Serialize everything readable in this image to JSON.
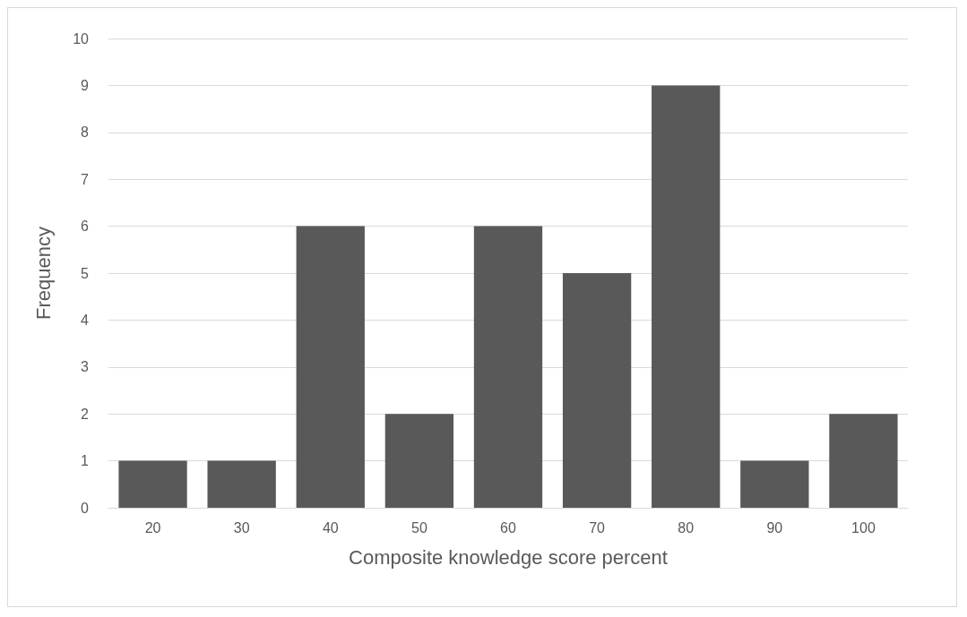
{
  "chart_data": {
    "type": "bar",
    "xlabel": "Composite knowledge score percent",
    "ylabel": "Frequency",
    "categories": [
      "20",
      "30",
      "40",
      "50",
      "60",
      "70",
      "80",
      "90",
      "100"
    ],
    "values": [
      1,
      1,
      6,
      2,
      6,
      5,
      9,
      1,
      2
    ],
    "color": "#595959",
    "ylim": [
      0,
      10
    ],
    "yticks": [
      0,
      1,
      2,
      3,
      4,
      5,
      6,
      7,
      8,
      9,
      10
    ],
    "grid": "y"
  }
}
